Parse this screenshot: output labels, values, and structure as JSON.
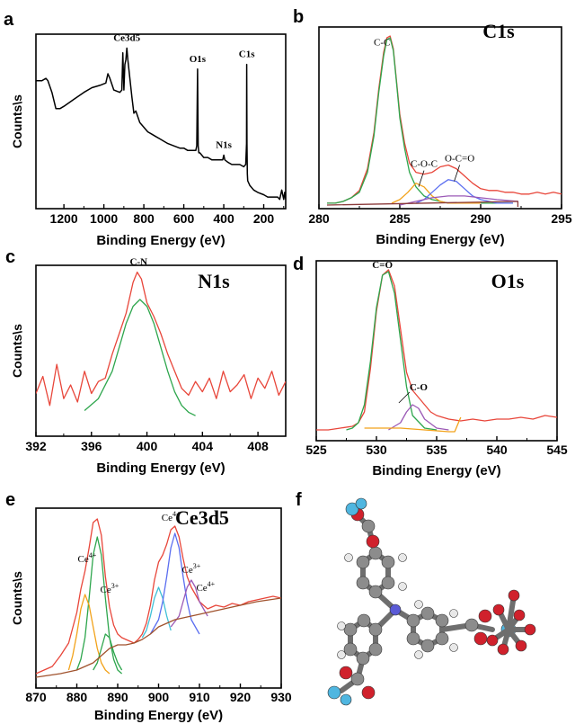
{
  "chart_data": [
    {
      "panel": "a",
      "type": "line",
      "xlabel": "Binding Energy (eV)",
      "ylabel": "Counts\\s",
      "xlim": [
        1340,
        90
      ],
      "xticks": [
        1200,
        1000,
        800,
        600,
        400,
        200
      ],
      "annotations": [
        {
          "text": "Ce3d5",
          "x": 885
        },
        {
          "text": "O1s",
          "x": 531
        },
        {
          "text": "N1s",
          "x": 400
        },
        {
          "text": "C1s",
          "x": 285
        }
      ],
      "series": [
        {
          "color": "#000000",
          "x": [
            1340,
            1310,
            1290,
            1280,
            1260,
            1240,
            1220,
            1200,
            1150,
            1100,
            1060,
            1020,
            990,
            980,
            970,
            950,
            920,
            910,
            905,
            900,
            895,
            890,
            885,
            880,
            860,
            850,
            840,
            820,
            800,
            780,
            760,
            740,
            720,
            700,
            680,
            650,
            620,
            600,
            580,
            560,
            545,
            540,
            535,
            531,
            528,
            525,
            520,
            500,
            480,
            460,
            440,
            420,
            405,
            400,
            395,
            380,
            360,
            340,
            320,
            300,
            290,
            286,
            285,
            284,
            282,
            280,
            270,
            250,
            230,
            200,
            180,
            150,
            130,
            120,
            110,
            100,
            95,
            90
          ],
          "y": [
            55,
            55,
            56,
            55,
            50,
            43,
            43,
            44,
            47,
            50,
            52,
            53,
            54,
            58,
            56,
            51,
            50,
            51,
            67,
            51,
            62,
            64,
            69,
            64,
            48,
            41,
            42,
            37,
            35,
            33,
            32,
            31,
            30,
            29,
            28,
            27,
            26,
            26,
            25,
            25,
            25,
            25,
            27,
            60,
            27,
            24,
            24,
            22,
            22,
            21,
            21,
            21,
            21,
            23,
            21,
            20,
            19,
            19,
            19,
            18,
            19,
            28,
            62,
            28,
            15,
            12,
            10,
            8,
            7,
            6,
            5,
            5,
            5,
            4,
            8,
            4,
            7,
            4
          ]
        }
      ]
    },
    {
      "panel": "b",
      "type": "line",
      "title": "C1s",
      "xlabel": "Binding Energy (eV)",
      "xlim": [
        280,
        295
      ],
      "xticks": [
        280,
        285,
        290,
        295
      ],
      "annotations": [
        {
          "text": "C-C",
          "x": 283.9
        },
        {
          "text": "C-O-C",
          "x": 286.5
        },
        {
          "text": "O-C=O",
          "x": 288.7
        }
      ],
      "series": [
        {
          "color": "#e8463a",
          "x": [
            280.5,
            281,
            281.5,
            282,
            282.5,
            283,
            283.4,
            283.7,
            284,
            284.2,
            284.4,
            284.6,
            284.8,
            285,
            285.3,
            285.6,
            286,
            286.5,
            287,
            287.5,
            288,
            288.5,
            289,
            289.5,
            290,
            290.5,
            291,
            291.5,
            292,
            292.5,
            293,
            293.5,
            294,
            294.5,
            295
          ],
          "y": [
            3,
            3,
            4,
            6,
            10,
            22,
            42,
            66,
            86,
            94,
            95,
            88,
            70,
            52,
            36,
            25,
            20,
            19,
            20,
            23,
            24,
            22,
            18,
            14,
            11,
            10,
            10,
            9,
            9,
            8,
            8,
            9,
            8,
            9,
            8
          ]
        },
        {
          "color": "#2ea64d",
          "x": [
            280.5,
            281,
            281.5,
            282,
            282.5,
            283,
            283.4,
            283.7,
            284,
            284.2,
            284.4,
            284.6,
            284.8,
            285,
            285.3,
            285.6,
            286,
            286.5,
            287,
            287.5,
            288,
            288.5,
            289,
            289.5,
            290,
            291,
            292
          ],
          "y": [
            3,
            3,
            4,
            6,
            9,
            20,
            40,
            64,
            84,
            93,
            94,
            87,
            69,
            50,
            33,
            20,
            12,
            7,
            5,
            4,
            3,
            3,
            3,
            3,
            3,
            3,
            3
          ]
        },
        {
          "color": "#f2a21a",
          "x": [
            284.5,
            285,
            285.5,
            286,
            286.5,
            287,
            287.5,
            288,
            289,
            290
          ],
          "y": [
            3,
            5,
            9,
            14,
            12,
            7,
            4,
            3,
            3,
            3
          ]
        },
        {
          "color": "#5b6ef0",
          "x": [
            286,
            286.5,
            287,
            287.5,
            288,
            288.5,
            289,
            289.5,
            290,
            290.5,
            291,
            292
          ],
          "y": [
            3,
            5,
            9,
            13,
            16,
            15,
            11,
            7,
            5,
            4,
            3,
            3
          ]
        },
        {
          "color": "#9b59b6",
          "x": [
            285,
            286,
            287,
            288,
            289,
            290,
            291,
            292.3
          ],
          "y": [
            2,
            4,
            6,
            7,
            7,
            6,
            5,
            4
          ]
        },
        {
          "color": "#8b3a3a",
          "x": [
            280.5,
            292.3,
            292.3
          ],
          "y": [
            2,
            4,
            1
          ]
        }
      ]
    },
    {
      "panel": "c",
      "type": "line",
      "title": "N1s",
      "xlabel": "Binding Energy (eV)",
      "ylabel": "Counts\\s",
      "xlim": [
        392,
        410
      ],
      "xticks": [
        392,
        396,
        400,
        404,
        408
      ],
      "annotations": [
        {
          "text": "C-N",
          "x": 399.4
        }
      ],
      "series": [
        {
          "color": "#e8463a",
          "x": [
            392,
            392.5,
            393,
            393.5,
            394,
            394.5,
            395,
            395.5,
            396,
            396.5,
            397,
            397.5,
            398,
            398.5,
            399,
            399.3,
            399.6,
            400,
            400.5,
            401,
            401.5,
            402,
            402.5,
            403,
            403.5,
            404,
            404.5,
            405,
            405.5,
            406,
            406.5,
            407,
            407.5,
            408,
            408.5,
            409,
            409.5,
            410
          ],
          "y": [
            25,
            35,
            18,
            42,
            22,
            30,
            20,
            38,
            25,
            32,
            34,
            48,
            60,
            72,
            90,
            96,
            92,
            78,
            70,
            60,
            48,
            38,
            28,
            24,
            32,
            26,
            34,
            22,
            38,
            26,
            30,
            36,
            22,
            34,
            28,
            38,
            24,
            32
          ]
        },
        {
          "color": "#2ea64d",
          "x": [
            395.5,
            396.5,
            397.5,
            398,
            398.5,
            399,
            399.5,
            400,
            400.5,
            401,
            401.5,
            402,
            402.5,
            403,
            403.5
          ],
          "y": [
            15,
            22,
            38,
            52,
            66,
            76,
            80,
            76,
            66,
            52,
            38,
            26,
            18,
            14,
            12
          ]
        }
      ]
    },
    {
      "panel": "d",
      "type": "line",
      "title": "O1s",
      "xlabel": "Binding Energy (eV)",
      "xlim": [
        525,
        545
      ],
      "xticks": [
        525,
        530,
        535,
        540,
        545
      ],
      "annotations": [
        {
          "text": "C=O",
          "x": 530.5
        },
        {
          "text": "C-O",
          "x": 533.5
        }
      ],
      "series": [
        {
          "color": "#e8463a",
          "x": [
            525,
            526,
            527,
            528,
            528.5,
            529,
            529.5,
            530,
            530.5,
            531,
            531.5,
            532,
            532.5,
            533,
            533.5,
            534,
            534.5,
            535,
            536,
            537,
            538,
            539,
            540,
            541,
            542,
            543,
            544,
            545
          ],
          "y": [
            6,
            6,
            7,
            8,
            10,
            16,
            40,
            72,
            92,
            95,
            86,
            62,
            38,
            28,
            24,
            20,
            16,
            14,
            12,
            11,
            12,
            11,
            12,
            12,
            13,
            12,
            14,
            13
          ]
        },
        {
          "color": "#2ea64d",
          "x": [
            527.5,
            528,
            528.5,
            529,
            529.5,
            530,
            530.5,
            531,
            531.5,
            532,
            532.5,
            533,
            534,
            535
          ],
          "y": [
            6,
            7,
            10,
            20,
            44,
            74,
            92,
            94,
            82,
            56,
            30,
            14,
            7,
            6
          ]
        },
        {
          "color": "#9b59b6",
          "x": [
            531,
            532,
            532.5,
            533,
            533.5,
            534,
            535,
            536
          ],
          "y": [
            6,
            10,
            16,
            20,
            18,
            12,
            7,
            6
          ]
        },
        {
          "color": "#f2a21a",
          "x": [
            529,
            532,
            534,
            536,
            536.5,
            537
          ],
          "y": [
            7,
            7,
            6,
            5,
            5,
            13
          ]
        }
      ]
    },
    {
      "panel": "e",
      "type": "line",
      "title": "Ce3d5",
      "xlabel": "Binding Energy (eV)",
      "ylabel": "Counts\\s",
      "xlim": [
        870,
        930
      ],
      "xticks": [
        870,
        880,
        890,
        900,
        910,
        920,
        930
      ],
      "annotations": [
        {
          "text": "Ce",
          "sup": "4+",
          "x": 882.5
        },
        {
          "text": "Ce",
          "sup": "3+",
          "x": 888
        },
        {
          "text": "Ce",
          "sup": "4+",
          "x": 903
        },
        {
          "text": "Ce",
          "sup": "3+",
          "x": 908
        },
        {
          "text": "Ce",
          "sup": "4+",
          "x": 911.5
        }
      ],
      "series": [
        {
          "color": "#e8463a",
          "x": [
            870,
            872,
            874,
            876,
            878,
            880,
            881,
            882,
            883,
            884,
            885,
            886,
            887,
            888,
            889,
            890,
            891,
            892,
            893,
            894,
            895,
            896,
            897,
            898,
            899,
            900,
            901,
            902,
            903,
            904,
            905,
            906,
            907,
            908,
            909,
            910,
            912,
            914,
            916,
            918,
            920,
            922,
            924,
            926,
            928,
            930
          ],
          "y": [
            8,
            10,
            12,
            18,
            25,
            42,
            55,
            65,
            78,
            92,
            94,
            85,
            62,
            45,
            35,
            30,
            28,
            27,
            26,
            25,
            27,
            30,
            36,
            46,
            60,
            70,
            74,
            80,
            88,
            90,
            84,
            72,
            62,
            56,
            52,
            48,
            44,
            46,
            45,
            47,
            46,
            48,
            49,
            50,
            51,
            50
          ]
        },
        {
          "color": "#2ea64d",
          "x": [
            880,
            881,
            882,
            883,
            884,
            885,
            886,
            887,
            888,
            889,
            890,
            891
          ],
          "y": [
            10,
            16,
            28,
            50,
            74,
            84,
            74,
            50,
            28,
            16,
            10,
            8
          ]
        },
        {
          "color": "#f2a21a",
          "x": [
            878,
            879,
            880,
            881,
            882,
            883,
            884,
            885,
            886,
            887,
            888
          ],
          "y": [
            10,
            18,
            30,
            44,
            52,
            46,
            34,
            22,
            14,
            10,
            8
          ]
        },
        {
          "color": "#2ea64d",
          "x": [
            884,
            885,
            886,
            887,
            888,
            889,
            890,
            891
          ],
          "y": [
            10,
            14,
            22,
            30,
            28,
            20,
            14,
            10
          ]
        },
        {
          "color": "#3fc0d6",
          "x": [
            896,
            897,
            898,
            899,
            900,
            901,
            902,
            903
          ],
          "y": [
            28,
            32,
            40,
            50,
            56,
            50,
            40,
            32
          ]
        },
        {
          "color": "#5b6ef0",
          "x": [
            898,
            900,
            901,
            902,
            903,
            904,
            905,
            906,
            907,
            908,
            910
          ],
          "y": [
            30,
            38,
            48,
            62,
            78,
            86,
            78,
            62,
            48,
            38,
            30
          ]
        },
        {
          "color": "#9b59b6",
          "x": [
            903,
            905,
            906,
            907,
            908,
            909,
            910,
            912
          ],
          "y": [
            34,
            40,
            48,
            56,
            60,
            56,
            48,
            40
          ]
        },
        {
          "color": "#a0522d",
          "x": [
            870,
            876,
            880,
            884,
            886,
            888,
            890,
            892,
            894,
            896,
            898,
            900,
            904,
            908,
            912,
            916,
            920,
            924,
            930
          ],
          "y": [
            6,
            8,
            10,
            14,
            18,
            22,
            24,
            24,
            25,
            27,
            30,
            34,
            38,
            40,
            42,
            44,
            46,
            48,
            50
          ]
        }
      ]
    }
  ]
}
